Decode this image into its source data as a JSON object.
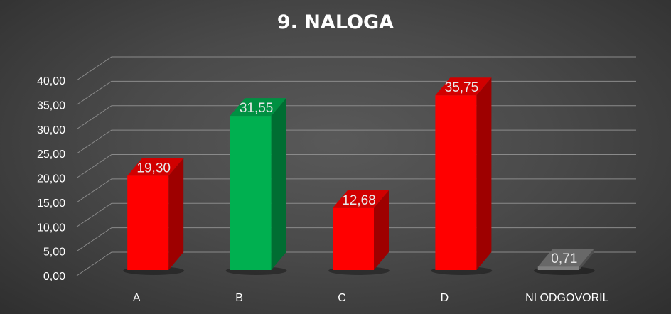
{
  "chart_data": {
    "type": "bar",
    "title": "9. NALOGA",
    "categories": [
      "A",
      "B",
      "C",
      "D",
      "NI ODGOVORIL"
    ],
    "values": [
      19.3,
      31.55,
      12.68,
      35.75,
      0.71
    ],
    "value_labels": [
      "19,30",
      "31,55",
      "12,68",
      "35,75",
      "0,71"
    ],
    "y_ticks": [
      "0,00",
      "5,00",
      "10,00",
      "15,00",
      "20,00",
      "25,00",
      "30,00",
      "35,00",
      "40,00"
    ],
    "ylim": [
      0,
      40
    ],
    "grid": true,
    "legend": "none",
    "three_d": true,
    "bar_colors": [
      "#ff0000",
      "#00b050",
      "#ff0000",
      "#ff0000",
      "#7f7f7f"
    ]
  }
}
